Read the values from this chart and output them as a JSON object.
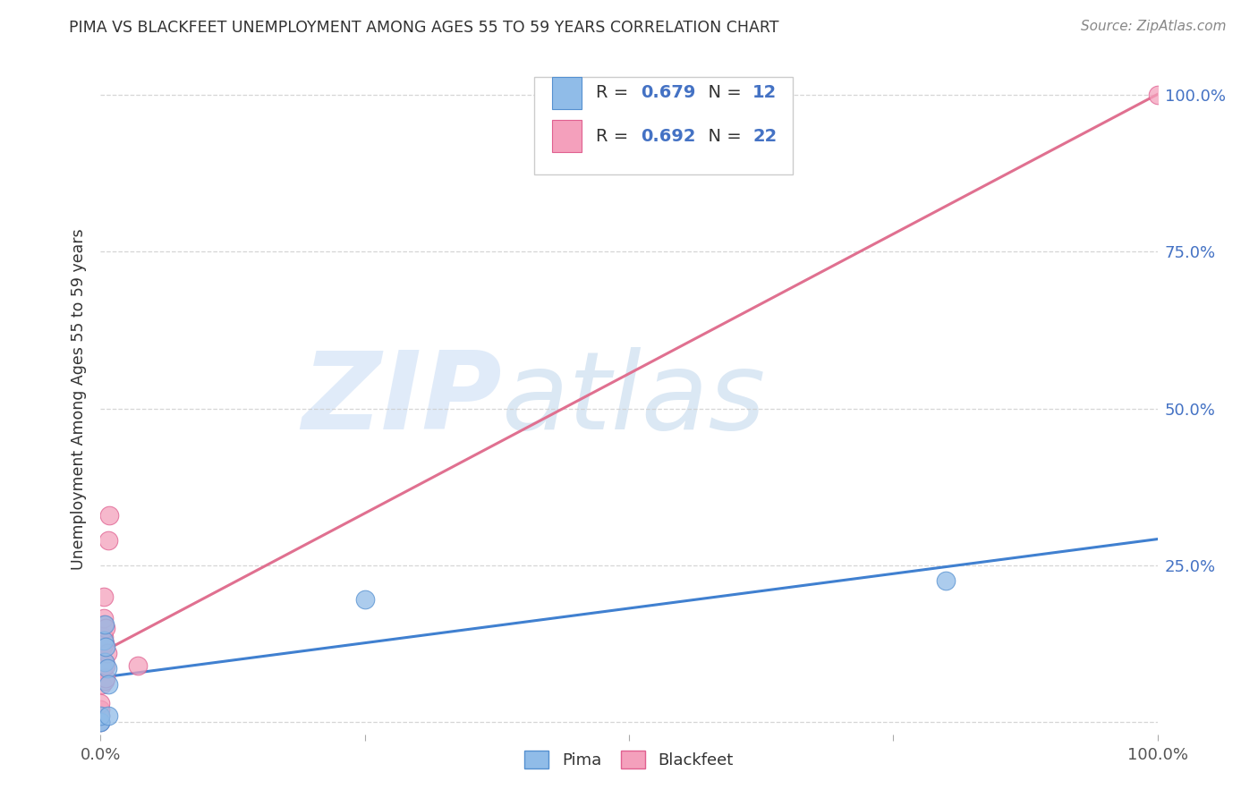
{
  "title": "PIMA VS BLACKFEET UNEMPLOYMENT AMONG AGES 55 TO 59 YEARS CORRELATION CHART",
  "source": "Source: ZipAtlas.com",
  "ylabel": "Unemployment Among Ages 55 to 59 years",
  "background_color": "#ffffff",
  "watermark_zip": "ZIP",
  "watermark_atlas": "atlas",
  "pima_color": "#90bce8",
  "blackfeet_color": "#f4a0bc",
  "pima_edge_color": "#5590d0",
  "blackfeet_edge_color": "#e06090",
  "pima_line_color": "#4080d0",
  "blackfeet_line_color": "#e07090",
  "pima_R": 0.679,
  "pima_N": 12,
  "blackfeet_R": 0.692,
  "blackfeet_N": 22,
  "pima_x": [
    0.0,
    0.0,
    0.0,
    0.003,
    0.004,
    0.004,
    0.005,
    0.006,
    0.007,
    0.007,
    0.25,
    0.8
  ],
  "pima_y": [
    0.0,
    0.0,
    0.01,
    0.13,
    0.155,
    0.095,
    0.12,
    0.085,
    0.06,
    0.01,
    0.195,
    0.225
  ],
  "blackfeet_x": [
    0.0,
    0.0,
    0.0,
    0.0,
    0.001,
    0.002,
    0.002,
    0.003,
    0.003,
    0.003,
    0.003,
    0.004,
    0.004,
    0.004,
    0.005,
    0.005,
    0.005,
    0.006,
    0.007,
    0.008,
    0.035,
    1.0
  ],
  "blackfeet_y": [
    0.0,
    0.01,
    0.02,
    0.03,
    0.06,
    0.085,
    0.12,
    0.135,
    0.155,
    0.165,
    0.2,
    0.125,
    0.095,
    0.065,
    0.07,
    0.09,
    0.15,
    0.11,
    0.29,
    0.33,
    0.09,
    1.0
  ],
  "xmin": 0.0,
  "xmax": 1.0,
  "ymin": -0.02,
  "ymax": 1.05,
  "yticks": [
    0.0,
    0.25,
    0.5,
    0.75,
    1.0
  ],
  "ytick_labels": [
    "",
    "25.0%",
    "50.0%",
    "75.0%",
    "100.0%"
  ],
  "xticks": [
    0.0,
    0.25,
    0.5,
    0.75,
    1.0
  ],
  "xtick_labels": [
    "0.0%",
    "",
    "",
    "",
    "100.0%"
  ],
  "grid_color": "#cccccc",
  "tick_label_color_right": "#4472c4",
  "tick_label_color_bottom": "#555555"
}
